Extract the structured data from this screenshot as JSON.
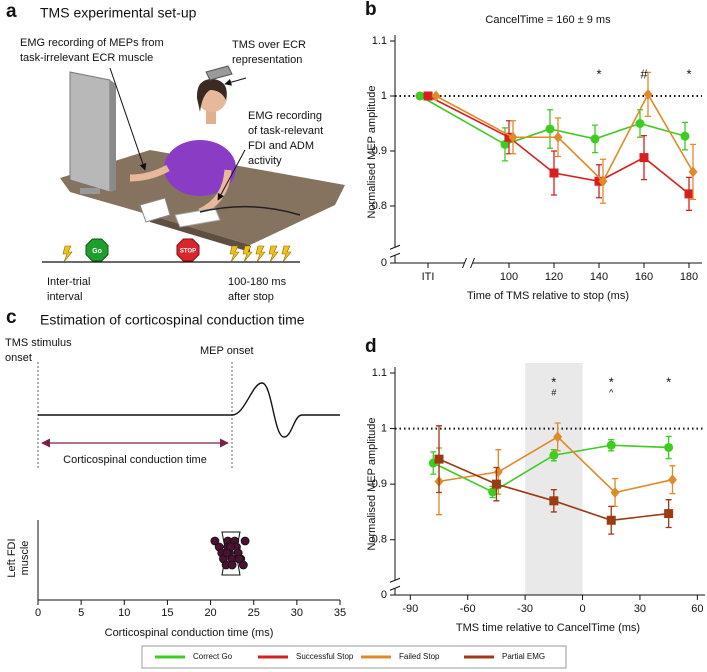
{
  "panel_a": {
    "label": "a",
    "title": "TMS experimental set-up",
    "ecr_emg": [
      "EMG recording of MEPs from",
      "task-irrelevant ECR muscle"
    ],
    "tms": [
      "TMS over ECR",
      "representation"
    ],
    "fdi_emg": [
      "EMG recording",
      "of task-relevant",
      "FDI and ADM",
      "activity"
    ],
    "go": "Go",
    "stop": "STOP",
    "iti": [
      "Inter-trial",
      "interval"
    ],
    "after_stop": [
      "100-180 ms",
      "after stop"
    ]
  },
  "panel_c": {
    "label": "c",
    "title": "Estimation of corticospinal conduction time",
    "stimulus_onset": [
      "TMS stimulus",
      "onset"
    ],
    "mep_onset": "MEP onset",
    "conduction_time": "Corticospinal conduction time"
  },
  "chart_data": [
    {
      "type": "line",
      "panel": "b",
      "subtitle": "CancelTime = 160 ± 9 ms",
      "xlabel": "Time of TMS relative to stop (ms)",
      "ylabel": "Normalised MEP amplitude",
      "categories": [
        "ITI",
        "100",
        "120",
        "140",
        "160",
        "180"
      ],
      "ylim": [
        0,
        1.1
      ],
      "axis_break": [
        0,
        0.75
      ],
      "yticks": [
        0,
        0.8,
        0.9,
        1,
        1.1
      ],
      "reference_line": 1,
      "series": [
        {
          "name": "Correct Go",
          "color": "#3dcc1f",
          "marker": "circle",
          "values": [
            1,
            0.912,
            0.94,
            0.922,
            0.95,
            0.927
          ],
          "errors": [
            0,
            0.03,
            0.035,
            0.025,
            0.025,
            0.025
          ]
        },
        {
          "name": "Successful Stop",
          "color": "#d61f1f",
          "marker": "square",
          "values": [
            1,
            0.925,
            0.86,
            0.845,
            0.888,
            0.822
          ],
          "errors": [
            0,
            0.03,
            0.04,
            0.03,
            0.04,
            0.03
          ]
        },
        {
          "name": "Failed Stop",
          "color": "#e08a2a",
          "marker": "diamond",
          "values": [
            1,
            0.925,
            0.925,
            0.845,
            1.003,
            0.862
          ],
          "errors": [
            0,
            0.03,
            0.035,
            0.04,
            0.04,
            0.05
          ]
        }
      ],
      "annotations": [
        {
          "at": "140",
          "lines": [
            "*"
          ]
        },
        {
          "at": "160",
          "lines": [
            "#"
          ]
        },
        {
          "at": "180",
          "lines": [
            "*"
          ]
        }
      ]
    },
    {
      "type": "strip",
      "xlabel": "Corticospinal conduction time (ms)",
      "ylabel": [
        "Left FDI",
        "muscle"
      ],
      "xlim": [
        0,
        35
      ],
      "xticks": [
        0,
        5,
        10,
        15,
        20,
        25,
        30,
        35
      ],
      "color": "#4a1131",
      "values": [
        20.5,
        21,
        21.3,
        21.5,
        21.8,
        22,
        22,
        22.2,
        22.5,
        22.5,
        22.8,
        23,
        23.2,
        23.5,
        23.8,
        24,
        22.3,
        21.9,
        23.3
      ]
    },
    {
      "type": "line",
      "panel": "d",
      "xlabel": "TMS time relative to CancelTime (ms)",
      "ylabel": "Normalised MEP amplitude",
      "xlim": [
        -98,
        64
      ],
      "xticks": [
        -90,
        -60,
        -30,
        0,
        30,
        60
      ],
      "ylim": [
        0,
        1.1
      ],
      "axis_break": [
        0,
        0.75
      ],
      "yticks": [
        0,
        0.8,
        0.9,
        1,
        1.1
      ],
      "reference_line": 1,
      "shaded_region": [
        -30,
        0
      ],
      "series": [
        {
          "color": "#3dcc1f",
          "marker": "circle",
          "x": [
            -78,
            -47,
            -15,
            15,
            45
          ],
          "values": [
            0.938,
            0.886,
            0.952,
            0.97,
            0.966
          ],
          "errors": [
            0.02,
            0.01,
            0.01,
            0.01,
            0.02
          ]
        },
        {
          "color": "#e08a2a",
          "marker": "diamond",
          "x": [
            -75,
            -44,
            -13,
            17,
            47
          ],
          "values": [
            0.905,
            0.922,
            0.985,
            0.885,
            0.908
          ],
          "errors": [
            0.06,
            0.04,
            0.025,
            0.025,
            0.025
          ]
        },
        {
          "name": "Partial EMG",
          "color": "#9c3a12",
          "marker": "square",
          "x": [
            -75,
            -45,
            -15,
            15,
            45
          ],
          "values": [
            0.945,
            0.9,
            0.87,
            0.835,
            0.847
          ],
          "errors": [
            0.06,
            0.03,
            0.02,
            0.025,
            0.025
          ]
        }
      ],
      "annotations": [
        {
          "x": -15,
          "lines": [
            "*",
            "#"
          ]
        },
        {
          "x": 15,
          "lines": [
            "*",
            "^"
          ]
        },
        {
          "x": 45,
          "lines": [
            "*"
          ]
        }
      ]
    }
  ]
}
